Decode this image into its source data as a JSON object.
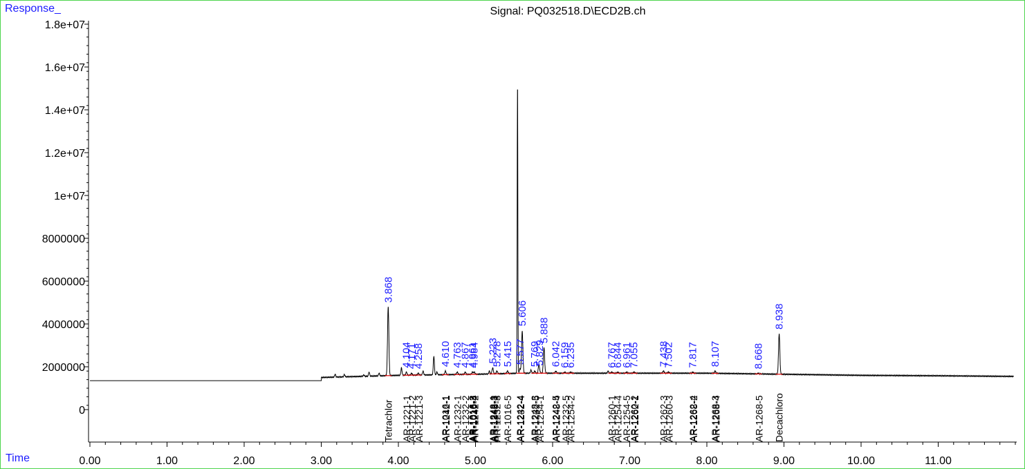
{
  "header": {
    "y_corner_label": "Response_",
    "x_corner_label": "Time",
    "title": "Signal: PQ032518.D\\ECD2B.ch"
  },
  "colors": {
    "trace": "#000000",
    "peak_label": "#1b1bff",
    "baseline_marker": "#e00000",
    "frame": "#4cd44c"
  },
  "chart_data": {
    "type": "line",
    "title": "Signal: PQ032518.D\\ECD2B.ch",
    "xlabel": "Time",
    "ylabel": "Response_",
    "xlim": [
      0,
      12.0
    ],
    "ylim": [
      -1600000,
      18300000
    ],
    "x_ticks": [
      0,
      1,
      2,
      3,
      4,
      5,
      6,
      7,
      8,
      9,
      10,
      11
    ],
    "x_tick_labels": [
      "0.00",
      "1.00",
      "2.00",
      "3.00",
      "4.00",
      "5.00",
      "6.00",
      "7.00",
      "8.00",
      "9.00",
      "10.00",
      "11.00"
    ],
    "y_ticks": [
      0,
      2000000,
      4000000,
      6000000,
      8000000,
      10000000,
      12000000,
      14000000,
      16000000,
      18000000
    ],
    "y_tick_labels": [
      "0",
      "2000000",
      "4000000",
      "6000000",
      "8000000",
      "1e+07",
      "1.2e+07",
      "1.4e+07",
      "1.6e+07",
      "1.8e+07"
    ],
    "grid": false,
    "baseline": [
      {
        "x": 0.0,
        "y": 1350000
      },
      {
        "x": 2.99,
        "y": 1350000
      },
      {
        "x": 3.0,
        "y": 1500000
      },
      {
        "x": 4.0,
        "y": 1600000
      },
      {
        "x": 5.0,
        "y": 1650000
      },
      {
        "x": 5.6,
        "y": 1700000
      },
      {
        "x": 6.0,
        "y": 1700000
      },
      {
        "x": 7.0,
        "y": 1700000
      },
      {
        "x": 8.0,
        "y": 1700000
      },
      {
        "x": 9.0,
        "y": 1650000
      },
      {
        "x": 10.0,
        "y": 1600000
      },
      {
        "x": 11.0,
        "y": 1580000
      },
      {
        "x": 11.98,
        "y": 1550000
      }
    ],
    "minor_peaks": [
      {
        "x": 3.18,
        "y": 1650000
      },
      {
        "x": 3.3,
        "y": 1640000
      },
      {
        "x": 3.55,
        "y": 1620000
      },
      {
        "x": 3.62,
        "y": 1750000
      },
      {
        "x": 3.75,
        "y": 1700000
      },
      {
        "x": 4.04,
        "y": 1950000
      },
      {
        "x": 4.32,
        "y": 1800000
      },
      {
        "x": 4.46,
        "y": 2500000
      },
      {
        "x": 4.5,
        "y": 1750000
      },
      {
        "x": 5.18,
        "y": 1800000
      },
      {
        "x": 5.72,
        "y": 1850000
      },
      {
        "x": 5.82,
        "y": 2000000
      },
      {
        "x": 6.72,
        "y": 1800000
      }
    ],
    "labeled_peaks": [
      {
        "rt": "3.868",
        "x": 3.868,
        "height": 4800000
      },
      {
        "rt": "4.104",
        "x": 4.104,
        "height": 1750000
      },
      {
        "rt": "4.171",
        "x": 4.171,
        "height": 1700000
      },
      {
        "rt": "4.258",
        "x": 4.258,
        "height": 1700000
      },
      {
        "rt": "4.610",
        "x": 4.61,
        "height": 1800000
      },
      {
        "rt": "4.763",
        "x": 4.763,
        "height": 1750000
      },
      {
        "rt": "4.867",
        "x": 4.867,
        "height": 1750000
      },
      {
        "rt": "4.961",
        "x": 4.961,
        "height": 1750000
      },
      {
        "rt": "4.984",
        "x": 4.984,
        "height": 1750000
      },
      {
        "rt": "5.223",
        "x": 5.223,
        "height": 1950000
      },
      {
        "rt": "5.278",
        "x": 5.278,
        "height": 1800000
      },
      {
        "rt": "5.415",
        "x": 5.415,
        "height": 1800000
      },
      {
        "rt": "5.577",
        "x": 5.577,
        "height": 1900000
      },
      {
        "rt": "5.606",
        "x": 5.606,
        "height": 3650000
      },
      {
        "rt": "5.769",
        "x": 5.769,
        "height": 1800000
      },
      {
        "rt": "5.829",
        "x": 5.829,
        "height": 1850000
      },
      {
        "rt": "5.888",
        "x": 5.888,
        "height": 2900000
      },
      {
        "rt": "6.042",
        "x": 6.042,
        "height": 1800000
      },
      {
        "rt": "6.159",
        "x": 6.159,
        "height": 1750000
      },
      {
        "rt": "6.235",
        "x": 6.235,
        "height": 1750000
      },
      {
        "rt": "6.767",
        "x": 6.767,
        "height": 1750000
      },
      {
        "rt": "6.844",
        "x": 6.844,
        "height": 1750000
      },
      {
        "rt": "6.961",
        "x": 6.961,
        "height": 1750000
      },
      {
        "rt": "7.055",
        "x": 7.055,
        "height": 1750000
      },
      {
        "rt": "7.438",
        "x": 7.438,
        "height": 1800000
      },
      {
        "rt": "7.502",
        "x": 7.502,
        "height": 1750000
      },
      {
        "rt": "7.817",
        "x": 7.817,
        "height": 1750000
      },
      {
        "rt": "8.107",
        "x": 8.107,
        "height": 1800000
      },
      {
        "rt": "8.668",
        "x": 8.668,
        "height": 1700000
      },
      {
        "rt": "8.938",
        "x": 8.938,
        "height": 3550000
      }
    ],
    "main_peak": {
      "x": 5.545,
      "height": 15300000
    },
    "compound_labels": [
      {
        "text": "Tetrachlor",
        "x": 3.86
      },
      {
        "text": "AR-1221-1",
        "x": 4.1
      },
      {
        "text": "AR-1221-2",
        "x": 4.17
      },
      {
        "text": "AR-1221-3",
        "x": 4.26
      },
      {
        "text": "AR-1016-1",
        "x": 4.6
      },
      {
        "text": "AR-1242-1",
        "x": 4.61
      },
      {
        "text": "AR-1232-1",
        "x": 4.76
      },
      {
        "text": "AR-1232-2",
        "x": 4.86
      },
      {
        "text": "AR-1016-2",
        "x": 4.95
      },
      {
        "text": "AR-1016-3",
        "x": 4.96
      },
      {
        "text": "AR-1016-4",
        "x": 4.97
      },
      {
        "text": "AR-1242-2",
        "x": 4.98
      },
      {
        "text": "AR-1248-1",
        "x": 5.22
      },
      {
        "text": "AR-1242-3",
        "x": 5.23
      },
      {
        "text": "AR-1248-2",
        "x": 5.24
      },
      {
        "text": "AR-1232-3",
        "x": 5.27
      },
      {
        "text": "AR-1016-5",
        "x": 5.41
      },
      {
        "text": "AR-1242-4",
        "x": 5.57
      },
      {
        "text": "AR-1232-4",
        "x": 5.58
      },
      {
        "text": "AR-1248-3",
        "x": 5.76
      },
      {
        "text": "AR-1232-5",
        "x": 5.77
      },
      {
        "text": "AR-1254-1",
        "x": 5.83
      },
      {
        "text": "AR-1242-5",
        "x": 6.03
      },
      {
        "text": "AR-1248-4",
        "x": 6.04
      },
      {
        "text": "AR-1232-5",
        "x": 6.16
      },
      {
        "text": "AR-1254-2",
        "x": 6.23
      },
      {
        "text": "AR-1260-1",
        "x": 6.76
      },
      {
        "text": "AR-1254-4",
        "x": 6.84
      },
      {
        "text": "AR-1254-5",
        "x": 6.95
      },
      {
        "text": "AR-1260-2",
        "x": 7.05
      },
      {
        "text": "AR-1262-1",
        "x": 7.06
      },
      {
        "text": "AR-1262-3",
        "x": 7.43
      },
      {
        "text": "AR-1260-3",
        "x": 7.5
      },
      {
        "text": "AR-1262-4",
        "x": 7.81
      },
      {
        "text": "AR-1268-2",
        "x": 7.82
      },
      {
        "text": "AR-1268-3",
        "x": 8.1
      },
      {
        "text": "AR-1268-4",
        "x": 8.11
      },
      {
        "text": "AR-1268-5",
        "x": 8.67
      },
      {
        "text": "Decachloro",
        "x": 8.93
      }
    ]
  }
}
